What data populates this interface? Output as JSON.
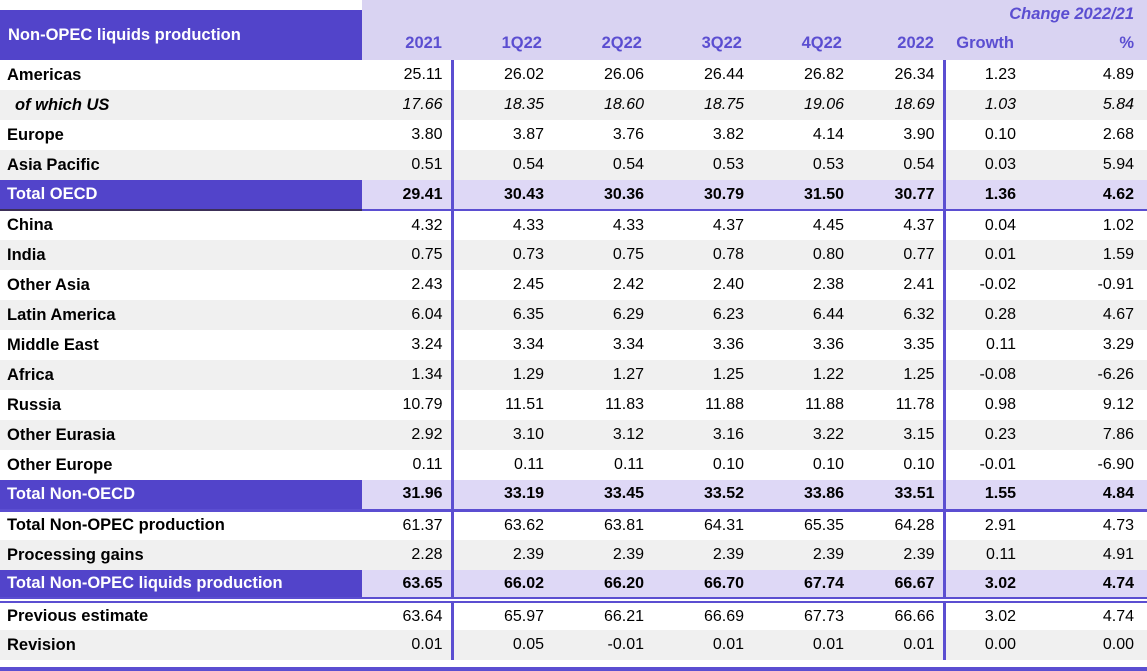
{
  "colors": {
    "accent_purple": "#5244ca",
    "header_text_purple": "#5b4ed1",
    "lavender_header_bg": "#d9d3f2",
    "total_row_bg": "#ded8f6",
    "stripe_gray": "#f0f0f0"
  },
  "chart_data": {
    "type": "table",
    "title": "Non-OPEC liquids production",
    "change_header": "Change 2022/21",
    "columns": [
      "2021",
      "1Q22",
      "2Q22",
      "3Q22",
      "4Q22",
      "2022",
      "Growth",
      "%"
    ],
    "rows": [
      {
        "label": "Americas",
        "type": "region",
        "separator_below": "none",
        "values": [
          "25.11",
          "26.02",
          "26.06",
          "26.44",
          "26.82",
          "26.34",
          "1.23",
          "4.89"
        ]
      },
      {
        "label": "of which US",
        "type": "sub",
        "separator_below": "none",
        "values": [
          "17.66",
          "18.35",
          "18.60",
          "18.75",
          "19.06",
          "18.69",
          "1.03",
          "5.84"
        ]
      },
      {
        "label": "Europe",
        "type": "region",
        "separator_below": "none",
        "values": [
          "3.80",
          "3.87",
          "3.76",
          "3.82",
          "4.14",
          "3.90",
          "0.10",
          "2.68"
        ]
      },
      {
        "label": "Asia Pacific",
        "type": "region",
        "separator_below": "none",
        "values": [
          "0.51",
          "0.54",
          "0.54",
          "0.53",
          "0.53",
          "0.54",
          "0.03",
          "5.94"
        ]
      },
      {
        "label": "Total OECD",
        "type": "total",
        "separator_below": "thin",
        "values": [
          "29.41",
          "30.43",
          "30.36",
          "30.79",
          "31.50",
          "30.77",
          "1.36",
          "4.62"
        ]
      },
      {
        "label": "China",
        "type": "region",
        "separator_below": "none",
        "values": [
          "4.32",
          "4.33",
          "4.33",
          "4.37",
          "4.45",
          "4.37",
          "0.04",
          "1.02"
        ]
      },
      {
        "label": "India",
        "type": "region",
        "separator_below": "none",
        "values": [
          "0.75",
          "0.73",
          "0.75",
          "0.78",
          "0.80",
          "0.77",
          "0.01",
          "1.59"
        ]
      },
      {
        "label": "Other Asia",
        "type": "region",
        "separator_below": "none",
        "values": [
          "2.43",
          "2.45",
          "2.42",
          "2.40",
          "2.38",
          "2.41",
          "-0.02",
          "-0.91"
        ]
      },
      {
        "label": "Latin America",
        "type": "region",
        "separator_below": "none",
        "values": [
          "6.04",
          "6.35",
          "6.29",
          "6.23",
          "6.44",
          "6.32",
          "0.28",
          "4.67"
        ]
      },
      {
        "label": "Middle East",
        "type": "region",
        "separator_below": "none",
        "values": [
          "3.24",
          "3.34",
          "3.34",
          "3.36",
          "3.36",
          "3.35",
          "0.11",
          "3.29"
        ]
      },
      {
        "label": "Africa",
        "type": "region",
        "separator_below": "none",
        "values": [
          "1.34",
          "1.29",
          "1.27",
          "1.25",
          "1.22",
          "1.25",
          "-0.08",
          "-6.26"
        ]
      },
      {
        "label": "Russia",
        "type": "region",
        "separator_below": "none",
        "values": [
          "10.79",
          "11.51",
          "11.83",
          "11.88",
          "11.88",
          "11.78",
          "0.98",
          "9.12"
        ]
      },
      {
        "label": "Other Eurasia",
        "type": "region",
        "separator_below": "none",
        "values": [
          "2.92",
          "3.10",
          "3.12",
          "3.16",
          "3.22",
          "3.15",
          "0.23",
          "7.86"
        ]
      },
      {
        "label": "Other Europe",
        "type": "region",
        "separator_below": "none",
        "values": [
          "0.11",
          "0.11",
          "0.11",
          "0.10",
          "0.10",
          "0.10",
          "-0.01",
          "-6.90"
        ]
      },
      {
        "label": "Total Non-OECD",
        "type": "total",
        "separator_below": "single",
        "values": [
          "31.96",
          "33.19",
          "33.45",
          "33.52",
          "33.86",
          "33.51",
          "1.55",
          "4.84"
        ]
      },
      {
        "label": "Total Non-OPEC production",
        "type": "region",
        "separator_below": "none",
        "values": [
          "61.37",
          "63.62",
          "63.81",
          "64.31",
          "65.35",
          "64.28",
          "2.91",
          "4.73"
        ]
      },
      {
        "label": "Processing gains",
        "type": "region",
        "separator_below": "none",
        "values": [
          "2.28",
          "2.39",
          "2.39",
          "2.39",
          "2.39",
          "2.39",
          "0.11",
          "4.91"
        ]
      },
      {
        "label": "Total Non-OPEC liquids production",
        "type": "total",
        "separator_below": "double",
        "values": [
          "63.65",
          "66.02",
          "66.20",
          "66.70",
          "67.74",
          "66.67",
          "3.02",
          "4.74"
        ]
      },
      {
        "label": "Previous estimate",
        "type": "region",
        "separator_below": "none",
        "values": [
          "63.64",
          "65.97",
          "66.21",
          "66.69",
          "67.73",
          "66.66",
          "3.02",
          "4.74"
        ]
      },
      {
        "label": "Revision",
        "type": "region",
        "separator_below": "none",
        "values": [
          "0.01",
          "0.05",
          "-0.01",
          "0.01",
          "0.01",
          "0.01",
          "0.00",
          "0.00"
        ]
      }
    ]
  }
}
